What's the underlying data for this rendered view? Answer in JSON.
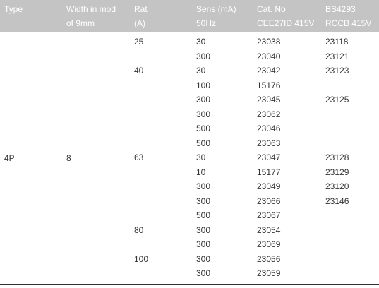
{
  "table": {
    "header": [
      [
        "Type"
      ],
      [
        "Width in mod",
        "of 9mm"
      ],
      [
        "Rat",
        "(A)"
      ],
      [
        "Sens (mA)",
        "50Hz"
      ],
      [
        "Cat. No",
        "CEE27ID 415V"
      ],
      [
        "BS4293",
        "RCCB 415V"
      ]
    ],
    "type": "4P",
    "width": "8",
    "ratings": [
      {
        "rating": "25",
        "rows": [
          [
            "30",
            "23038",
            "23118"
          ],
          [
            "300",
            "23040",
            "23121"
          ]
        ]
      },
      {
        "rating": "40",
        "rows": [
          [
            "30",
            "23042",
            "23123"
          ],
          [
            "100",
            "15176"
          ],
          [
            "300",
            "23045",
            "23125"
          ],
          [
            "300",
            "23062"
          ],
          [
            "500",
            "23046"
          ],
          [
            "500",
            "23063"
          ]
        ]
      },
      {
        "rating": "63",
        "rows": [
          [
            "30",
            "23047",
            "23128"
          ],
          [
            "10",
            "15177",
            "23129"
          ],
          [
            "300",
            "23049",
            "23120"
          ],
          [
            "300",
            "23066",
            "23146"
          ],
          [
            "500",
            "23067"
          ]
        ]
      },
      {
        "rating": "80",
        "rows": [
          [
            "300",
            "23054"
          ],
          [
            "300",
            "23069"
          ]
        ]
      },
      {
        "rating": "100",
        "rows": [
          [
            "300",
            "23056"
          ],
          [
            "300",
            "23059"
          ]
        ]
      }
    ]
  }
}
